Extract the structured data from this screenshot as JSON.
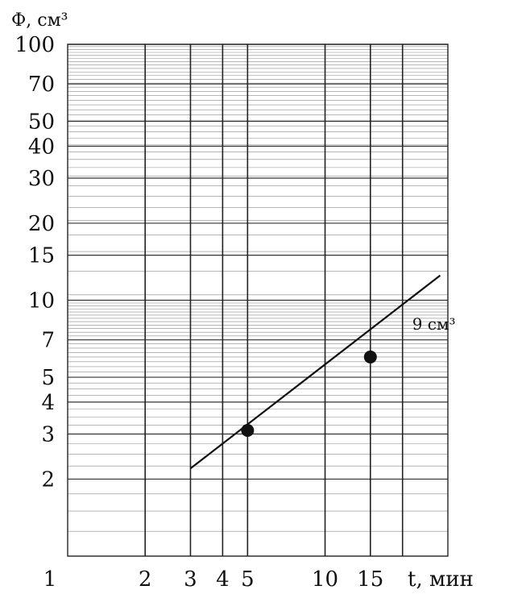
{
  "chart_data": {
    "type": "line",
    "scale": "log-log",
    "ylabel": "Ф, см³",
    "xlabel": "t, мин",
    "xlim": [
      1,
      30
    ],
    "ylim": [
      1,
      100
    ],
    "x_ticks": [
      1,
      2,
      3,
      4,
      5,
      10,
      15
    ],
    "x_tick_labels": [
      "1",
      "2",
      "3",
      "4",
      "5",
      "10",
      "15"
    ],
    "x_gridlines": [
      2,
      3,
      4,
      5,
      10,
      15,
      20
    ],
    "y_ticks": [
      2,
      3,
      4,
      5,
      7,
      10,
      15,
      20,
      30,
      40,
      50,
      70,
      100
    ],
    "y_tick_labels": [
      "2",
      "3",
      "4",
      "5",
      "7",
      "10",
      "15",
      "20",
      "30",
      "40",
      "50",
      "70",
      "100"
    ],
    "grid": true,
    "series": [
      {
        "x": [
          3,
          28
        ],
        "y": [
          2.2,
          12.5
        ],
        "points": [
          {
            "x": 5,
            "y": 3.1
          },
          {
            "x": 15,
            "y": 6
          }
        ],
        "annotation": "9 см³",
        "annotation_at": {
          "x": 20,
          "y": 9
        }
      }
    ]
  }
}
